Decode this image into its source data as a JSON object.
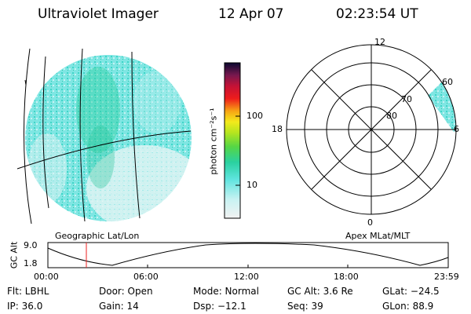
{
  "header": {
    "instrument": "Ultraviolet Imager",
    "date": "12 Apr 07",
    "time": "02:23:54 UT"
  },
  "colorbar": {
    "unit_label": "photon cm⁻²s⁻¹",
    "ticks": [
      "100",
      "10"
    ]
  },
  "labels": {
    "geo": "Geographic Lat/Lon",
    "apex": "Apex MLat/MLT"
  },
  "polar": {
    "mlt_labels": [
      "12",
      "18",
      "6",
      "0"
    ],
    "lat_labels": [
      "60",
      "70",
      "80"
    ]
  },
  "altitude_plot": {
    "ylabel": "GC Alt",
    "y_ticks": [
      "9.0",
      "1.8"
    ],
    "x_ticks": [
      "00:00",
      "06:00",
      "12:00",
      "18:00",
      "23:59"
    ]
  },
  "info": {
    "flt": "Flt: LBHL",
    "ip": "IP: 36.0",
    "door": "Door: Open",
    "gain": "Gain: 14",
    "mode": "Mode: Normal",
    "dsp": "Dsp:  −12.1",
    "gcalt": "GC Alt: 3.6 Re",
    "seq": "Seq: 39",
    "glat": "GLat: −24.5",
    "glon": "GLon:  88.9"
  }
}
